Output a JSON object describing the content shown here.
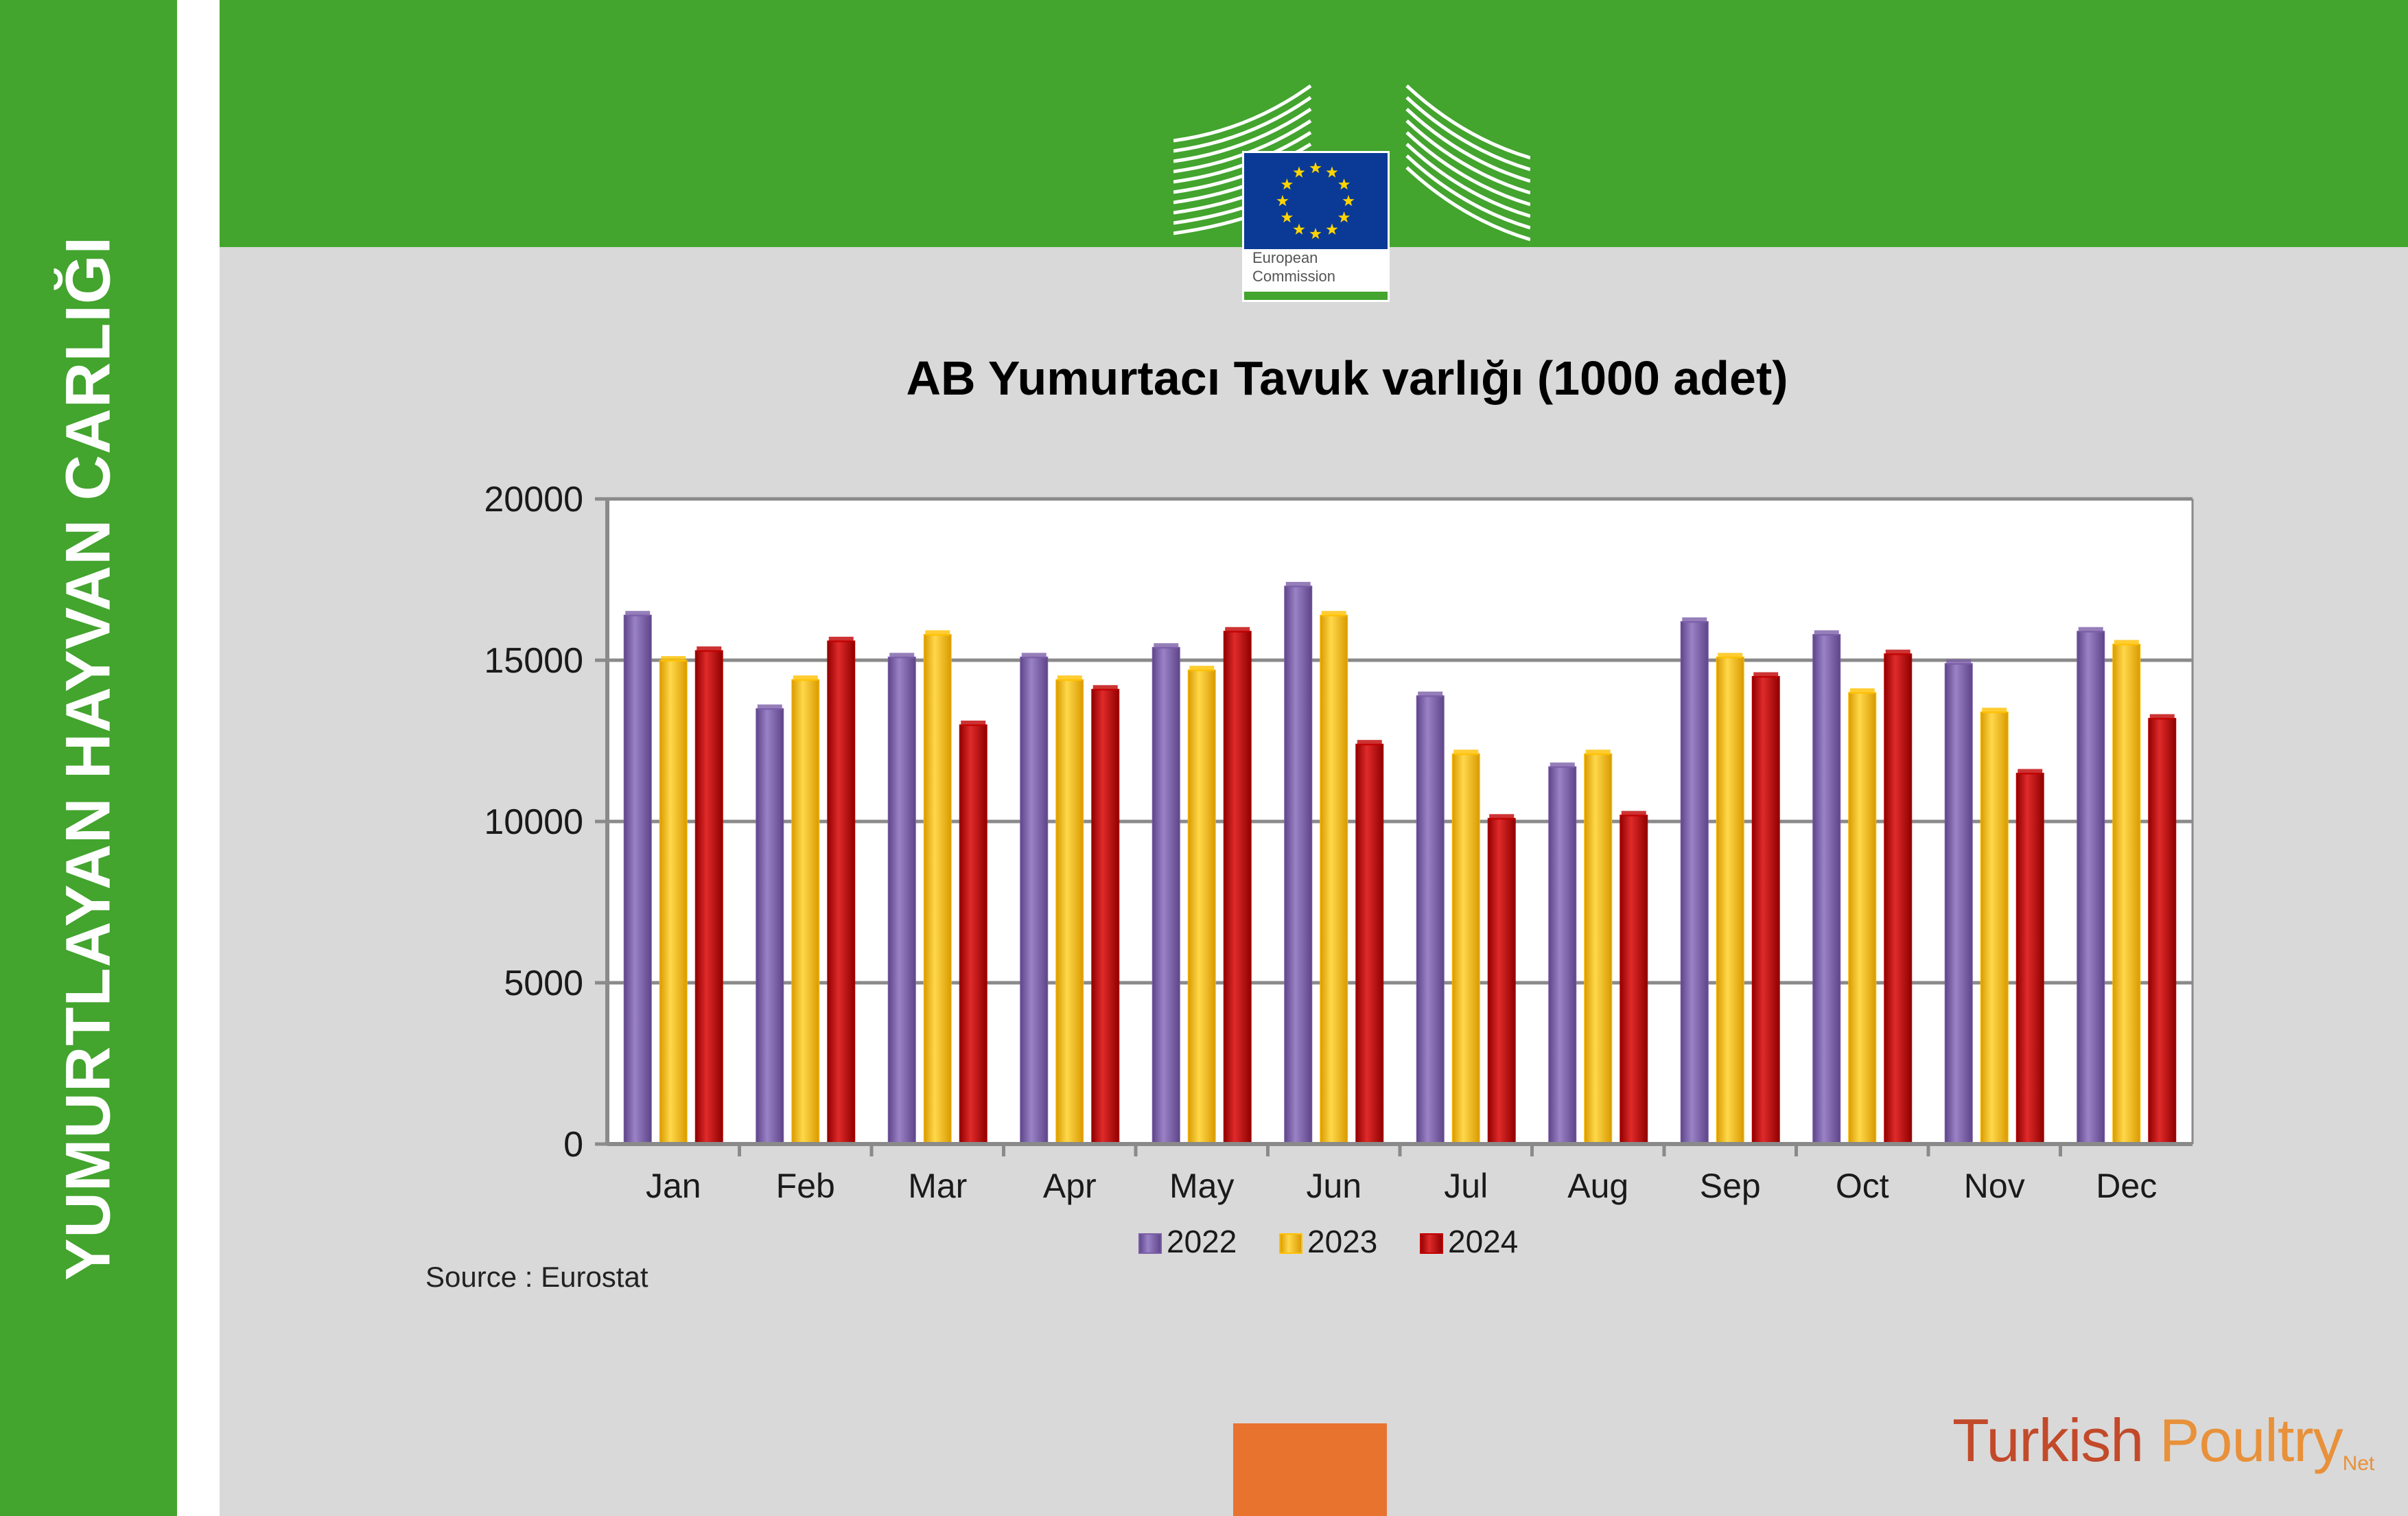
{
  "sidebar": {
    "title": "YUMURTLAYAN HAYVAN CARLIĞI"
  },
  "logo": {
    "line1": "European",
    "line2": "Commission"
  },
  "colors": {
    "green": "#43a42e",
    "panel": "#d9d9d9",
    "accent": "#e8732f",
    "eu_blue": "#0a3a96",
    "eu_star": "#ffd400"
  },
  "brand": {
    "part1": "Turkish ",
    "part2": "Poultry",
    "part3": "Net"
  },
  "chart_data": {
    "type": "bar",
    "title": "AB Yumurtacı Tavuk varlığı (1000 adet)",
    "source": "Source : Eurostat",
    "categories": [
      "Jan",
      "Feb",
      "Mar",
      "Apr",
      "May",
      "Jun",
      "Jul",
      "Aug",
      "Sep",
      "Oct",
      "Nov",
      "Dec"
    ],
    "series": [
      {
        "name": "2022",
        "color": "#7b5ea7",
        "values": [
          16400,
          13500,
          15100,
          15100,
          15400,
          17300,
          13900,
          11700,
          16200,
          15800,
          14900,
          15900
        ]
      },
      {
        "name": "2023",
        "color": "#ffc000",
        "values": [
          15000,
          14400,
          15800,
          14400,
          14700,
          16400,
          12100,
          12100,
          15100,
          14000,
          13400,
          15500
        ]
      },
      {
        "name": "2024",
        "color": "#c00000",
        "values": [
          15300,
          15600,
          13000,
          14100,
          15900,
          12400,
          10100,
          10200,
          14500,
          15200,
          11500,
          13200
        ]
      }
    ],
    "yticks": [
      0,
      5000,
      10000,
      15000,
      20000
    ],
    "ylim": [
      0,
      20000
    ],
    "grid": true,
    "legend": "bottom"
  }
}
